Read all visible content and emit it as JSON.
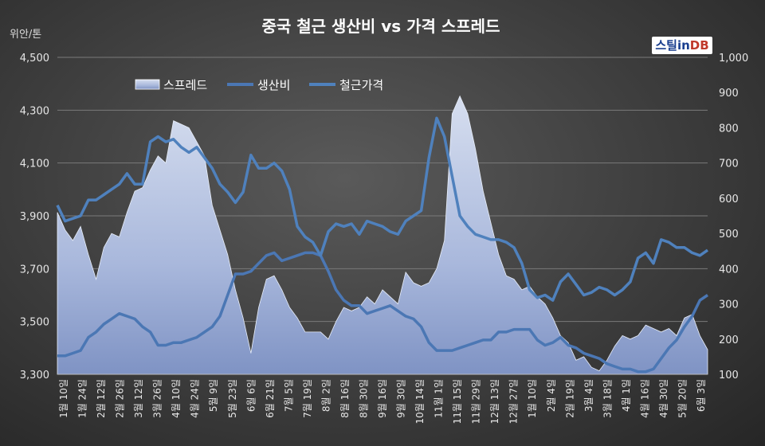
{
  "chart_data": {
    "type": "area+line",
    "title": "중국 철근 생산비 vs 가격 스프레드",
    "y_left_unit": "위안/톤",
    "y_left_ticks": [
      "4,500",
      "4,300",
      "4,100",
      "3,900",
      "3,700",
      "3,500",
      "3,300"
    ],
    "y_left_range": [
      3300,
      4500
    ],
    "y_right_ticks": [
      "1,000",
      "900",
      "800",
      "700",
      "600",
      "500",
      "400",
      "300",
      "200",
      "100"
    ],
    "y_right_range": [
      100,
      1000
    ],
    "x_tick_labels": [
      "1월 10일",
      "1월 24일",
      "2월 12일",
      "2월 26일",
      "3월 12일",
      "3월 26일",
      "4월 10일",
      "4월 24일",
      "5월 9일",
      "5월 23일",
      "6월 6일",
      "6월 21일",
      "7월 5일",
      "7월 19일",
      "8월 2일",
      "8월 16일",
      "8월 30일",
      "9월 16일",
      "9월 30일",
      "10월 14일",
      "11월 1일",
      "11월 15일",
      "11월 29일",
      "12월 13일",
      "12월 27일",
      "1월 10일",
      "2월 4일",
      "2월 19일",
      "3월 4일",
      "3월 18일",
      "4월 1일",
      "4월 16일",
      "4월 30일",
      "5월 20일",
      "6월 3일"
    ],
    "legend": [
      "스프레드",
      "생산비",
      "철근가격"
    ],
    "colors": {
      "spread_fill": "#b4c3e4",
      "cost_line": "#4b77b4",
      "price_line": "#4f81bd"
    },
    "series": [
      {
        "name": "스프레드",
        "axis": "right",
        "values": [
          560,
          510,
          480,
          520,
          440,
          370,
          460,
          500,
          490,
          560,
          620,
          630,
          680,
          720,
          700,
          820,
          810,
          800,
          760,
          720,
          580,
          510,
          440,
          340,
          260,
          160,
          290,
          370,
          380,
          340,
          290,
          260,
          220,
          220,
          220,
          200,
          250,
          290,
          280,
          290,
          320,
          300,
          340,
          320,
          300,
          390,
          360,
          350,
          360,
          400,
          480,
          840,
          890,
          840,
          740,
          620,
          530,
          440,
          380,
          370,
          340,
          350,
          320,
          300,
          260,
          210,
          190,
          140,
          150,
          120,
          110,
          140,
          180,
          210,
          200,
          210,
          240,
          230,
          220,
          230,
          210,
          260,
          270,
          210,
          170
        ]
      },
      {
        "name": "생산비",
        "axis": "left",
        "values": [
          3370,
          3370,
          3380,
          3390,
          3440,
          3460,
          3490,
          3510,
          3530,
          3520,
          3510,
          3480,
          3460,
          3410,
          3410,
          3420,
          3420,
          3430,
          3440,
          3460,
          3480,
          3520,
          3600,
          3680,
          3680,
          3690,
          3720,
          3750,
          3760,
          3730,
          3740,
          3750,
          3760,
          3760,
          3750,
          3690,
          3620,
          3580,
          3560,
          3560,
          3530,
          3540,
          3550,
          3560,
          3540,
          3520,
          3510,
          3480,
          3420,
          3390,
          3390,
          3390,
          3400,
          3410,
          3420,
          3430,
          3430,
          3460,
          3460,
          3470,
          3470,
          3470,
          3430,
          3410,
          3420,
          3440,
          3410,
          3400,
          3380,
          3370,
          3360,
          3340,
          3330,
          3320,
          3320,
          3310,
          3310,
          3320,
          3360,
          3400,
          3430,
          3480,
          3520,
          3580,
          3600
        ]
      },
      {
        "name": "철근가격",
        "axis": "left",
        "values": [
          3940,
          3880,
          3890,
          3900,
          3960,
          3960,
          3980,
          4000,
          4020,
          4060,
          4020,
          4020,
          4180,
          4200,
          4180,
          4190,
          4160,
          4140,
          4160,
          4120,
          4080,
          4020,
          3990,
          3950,
          3990,
          4130,
          4080,
          4080,
          4100,
          4070,
          4000,
          3860,
          3820,
          3800,
          3750,
          3840,
          3870,
          3860,
          3870,
          3830,
          3880,
          3870,
          3860,
          3840,
          3830,
          3880,
          3900,
          3920,
          4120,
          4270,
          4200,
          4050,
          3900,
          3860,
          3830,
          3820,
          3810,
          3810,
          3800,
          3780,
          3720,
          3620,
          3590,
          3600,
          3580,
          3650,
          3680,
          3640,
          3600,
          3610,
          3630,
          3620,
          3600,
          3620,
          3650,
          3740,
          3760,
          3720,
          3810,
          3800,
          3780,
          3780,
          3760,
          3750,
          3770
        ]
      }
    ]
  },
  "logo": {
    "part_a": "스틸in",
    "part_b": "DB"
  }
}
